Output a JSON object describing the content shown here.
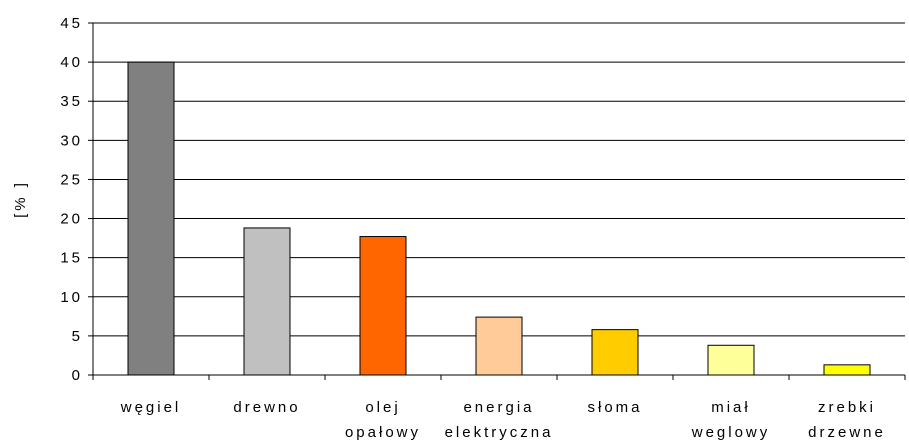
{
  "chart_data": {
    "type": "bar",
    "title": "",
    "xlabel": "",
    "ylabel": "[% ]",
    "ylim": [
      0,
      45
    ],
    "yticks": [
      "0",
      "5",
      "10",
      "15",
      "20",
      "25",
      "30",
      "35",
      "40",
      "45"
    ],
    "grid": true,
    "legend": "none",
    "categories": [
      [
        "węgiel"
      ],
      [
        "drewno"
      ],
      [
        "olej",
        "opałowy"
      ],
      [
        "energia",
        "elektryczna"
      ],
      [
        "słoma"
      ],
      [
        "miał",
        "weglowy"
      ],
      [
        "zrebki",
        "drzewne"
      ]
    ],
    "values": [
      40,
      18.8,
      17.7,
      7.4,
      5.8,
      3.8,
      1.3
    ],
    "colors": [
      "#808080",
      "#c0c0c0",
      "#ff6600",
      "#ffcc99",
      "#ffcc00",
      "#ffff99",
      "#ffff00"
    ]
  }
}
